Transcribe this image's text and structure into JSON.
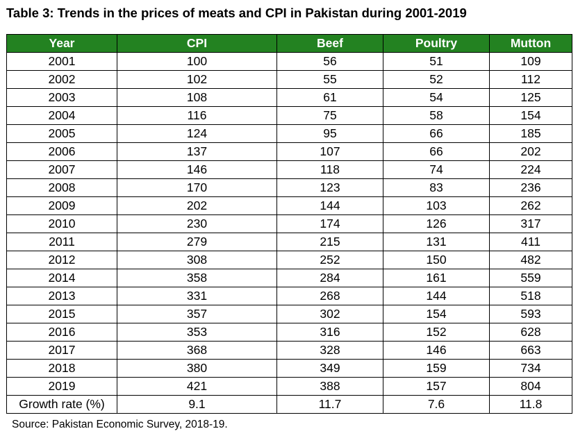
{
  "title": "Table 3: Trends in the prices of meats and CPI in Pakistan during 2001-2019",
  "headers": [
    "Year",
    "CPI",
    "Beef",
    "Poultry",
    "Mutton"
  ],
  "rows": [
    [
      "2001",
      "100",
      "56",
      "51",
      "109"
    ],
    [
      "2002",
      "102",
      "55",
      "52",
      "112"
    ],
    [
      "2003",
      "108",
      "61",
      "54",
      "125"
    ],
    [
      "2004",
      "116",
      "75",
      "58",
      "154"
    ],
    [
      "2005",
      "124",
      "95",
      "66",
      "185"
    ],
    [
      "2006",
      "137",
      "107",
      "66",
      "202"
    ],
    [
      "2007",
      "146",
      "118",
      "74",
      "224"
    ],
    [
      "2008",
      "170",
      "123",
      "83",
      "236"
    ],
    [
      "2009",
      "202",
      "144",
      "103",
      "262"
    ],
    [
      "2010",
      "230",
      "174",
      "126",
      "317"
    ],
    [
      "2011",
      "279",
      "215",
      "131",
      "411"
    ],
    [
      "2012",
      "308",
      "252",
      "150",
      "482"
    ],
    [
      "2014",
      "358",
      "284",
      "161",
      "559"
    ],
    [
      "2013",
      "331",
      "268",
      "144",
      "518"
    ],
    [
      "2015",
      "357",
      "302",
      "154",
      "593"
    ],
    [
      "2016",
      "353",
      "316",
      "152",
      "628"
    ],
    [
      "2017",
      "368",
      "328",
      "146",
      "663"
    ],
    [
      "2018",
      "380",
      "349",
      "159",
      "734"
    ],
    [
      "2019",
      "421",
      "388",
      "157",
      "804"
    ],
    [
      "Growth rate (%)",
      "9.1",
      "11.7",
      "7.6",
      "11.8"
    ]
  ],
  "source": "Source: Pakistan Economic Survey, 2018-19.",
  "colors": {
    "header_background": "#238221",
    "header_text": "#ffffff"
  }
}
